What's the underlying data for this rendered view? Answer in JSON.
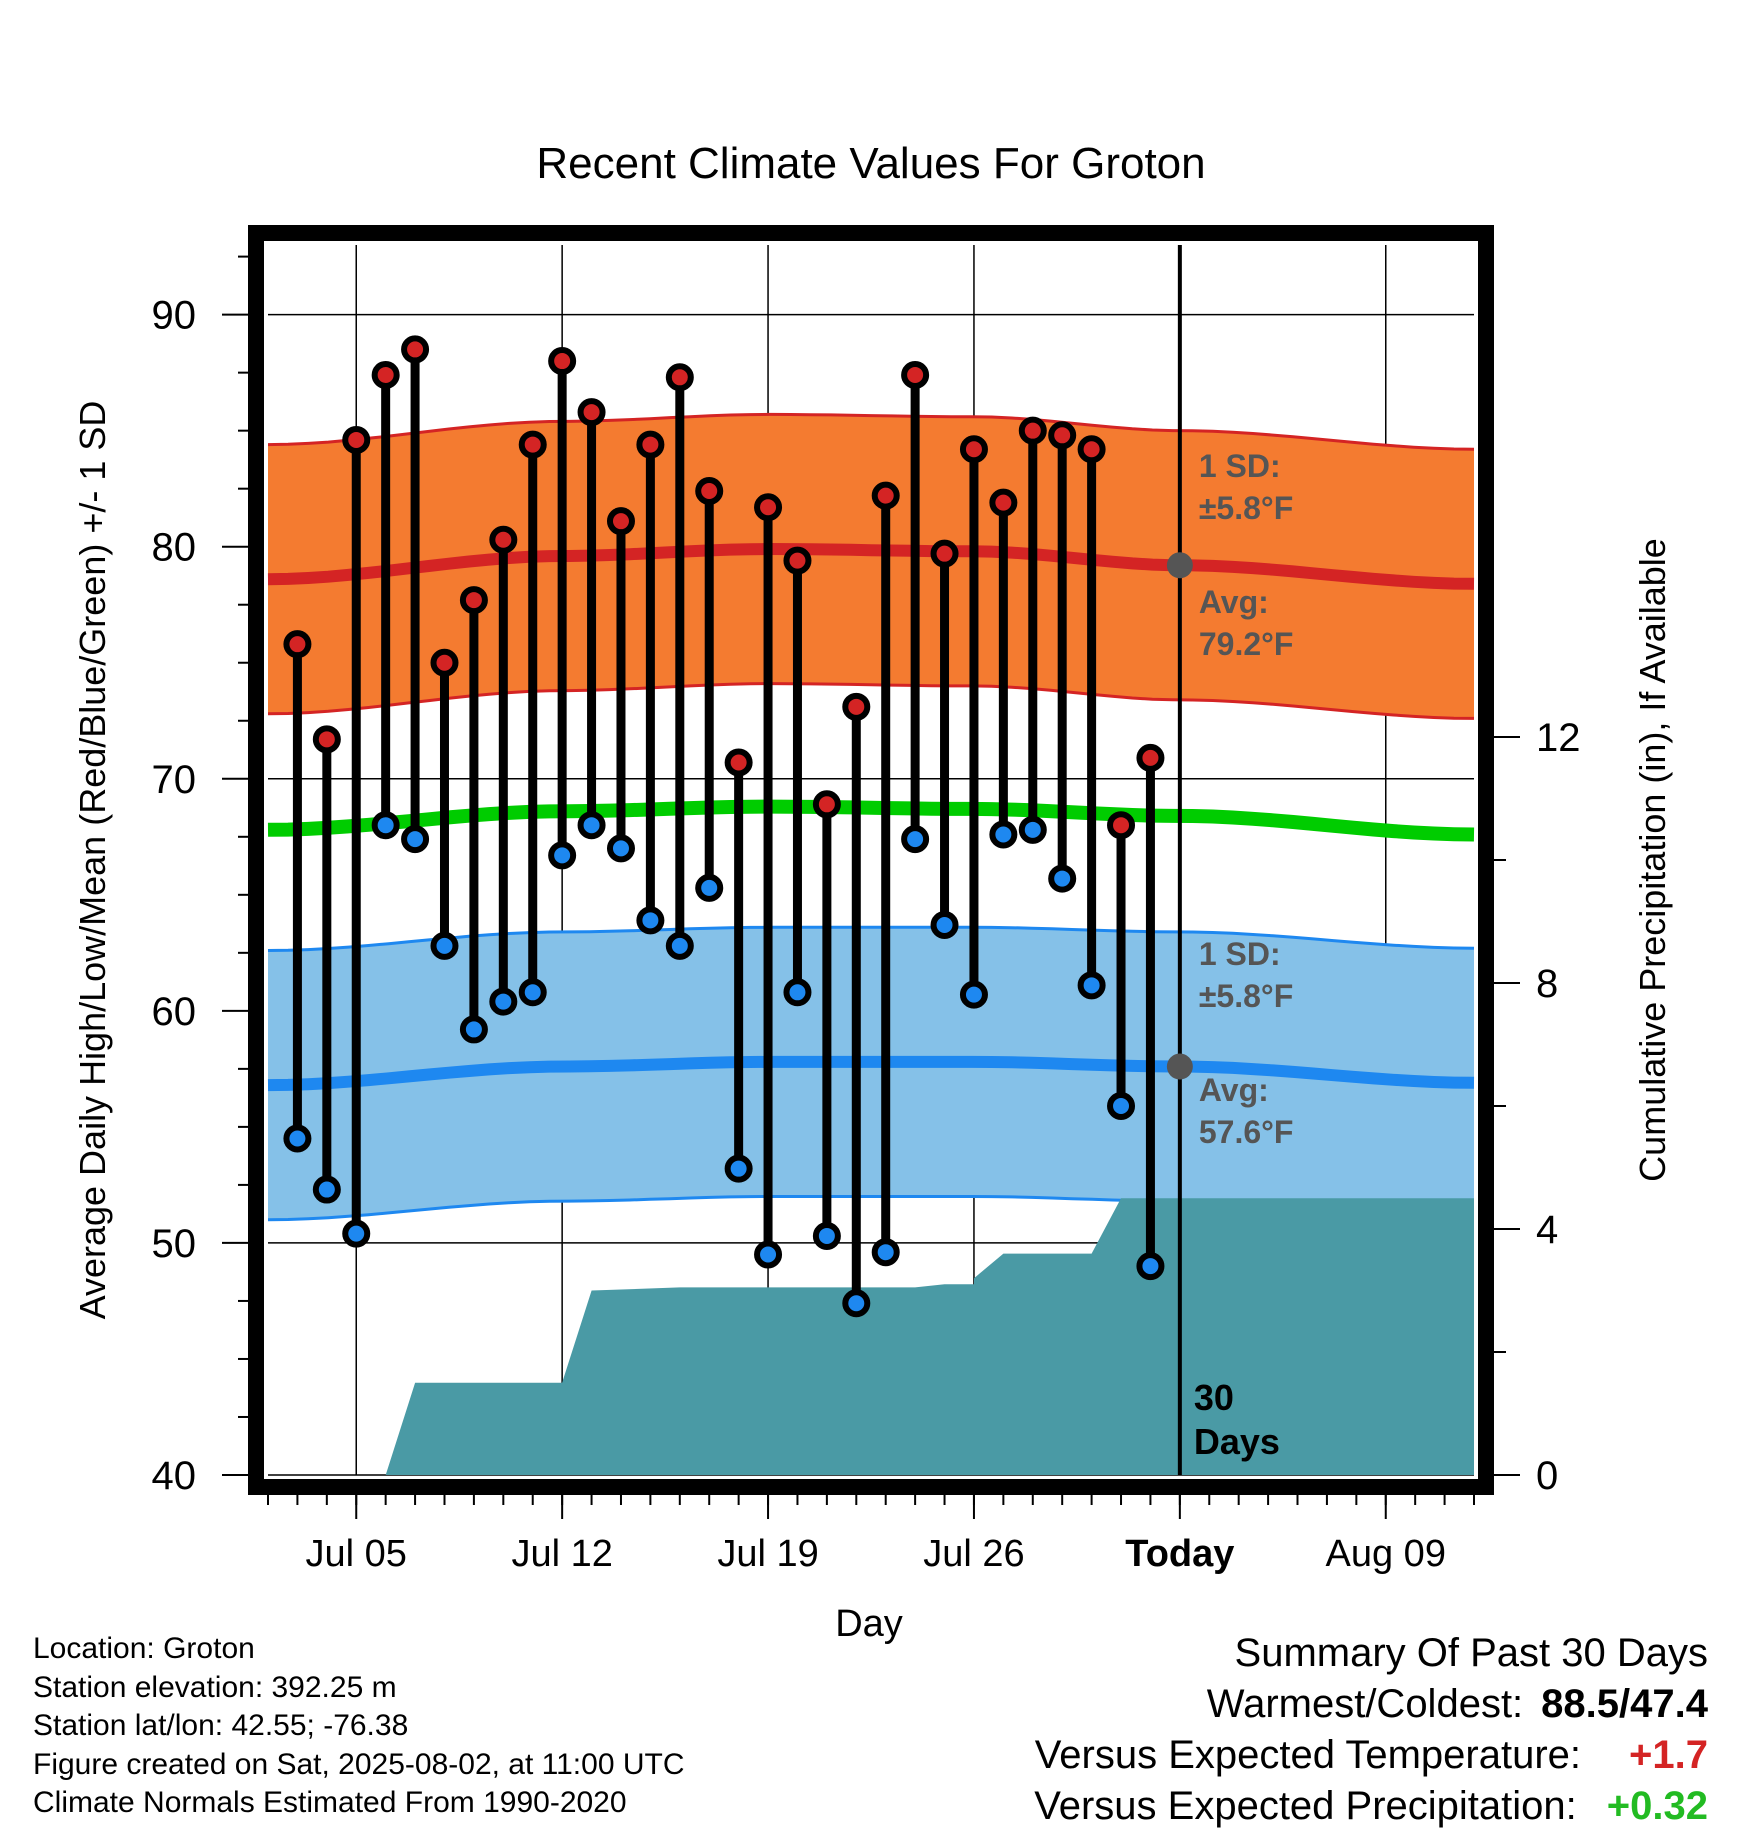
{
  "title": "Recent Climate Values For Groton",
  "ylabel": "Average Daily High/Low/Mean (Red/Blue/Green) +/- 1 SD",
  "y2label": "Cumulative Precipitation (in), If Available",
  "xlabel": "Day",
  "today_label": "Today",
  "window_label_line1": "30",
  "window_label_line2": "Days",
  "high_sd_label": [
    "1 SD:",
    "±5.8°F"
  ],
  "high_avg_label": [
    "Avg:",
    "79.2°F"
  ],
  "low_sd_label": [
    "1 SD:",
    "±5.8°F"
  ],
  "low_avg_label": [
    "Avg:",
    "57.6°F"
  ],
  "info": {
    "location": "Location: Groton",
    "elevation": "Station elevation: 392.25 m",
    "latlon": "Station lat/lon: 42.55; -76.38",
    "created": "Figure created on Sat, 2025-08-02, at 11:00 UTC",
    "normals": "Climate Normals Estimated From 1990-2020"
  },
  "summary": {
    "heading": "Summary Of Past 30 Days",
    "warmest_label": "Warmest/Coldest:",
    "warmest_value": "88.5/47.4",
    "temp_label": "Versus Expected Temperature:",
    "temp_value": "+1.7",
    "precip_label": "Versus Expected Precipitation:",
    "precip_value": "+0.32"
  },
  "colors": {
    "high_band": "#f47b30",
    "high_line": "#d42424",
    "low_band": "#85c1e8",
    "low_line": "#1e88f0",
    "mean_line": "#00cc00",
    "precip": "#4a9aa5",
    "high_dot": "#d42424",
    "low_dot": "#1e88f0",
    "label_gray": "#555555",
    "temp_diff": "#d42424",
    "precip_diff": "#22bb22"
  },
  "chart_data": {
    "type": "line",
    "title": "Recent Climate Values For Groton",
    "xlabel": "Day",
    "ylabel": "Average Daily High/Low/Mean (Red/Blue/Green) +/- 1 SD",
    "y2label": "Cumulative Precipitation (in), If Available",
    "ylim": [
      40,
      93
    ],
    "y2lim": [
      0,
      20
    ],
    "xlim": [
      "2025-07-02",
      "2025-08-12"
    ],
    "x_ticks": [
      "Jul 05",
      "Jul 12",
      "Jul 19",
      "Jul 26",
      "Today",
      "Aug 09"
    ],
    "x_tick_dates": [
      "2025-07-05",
      "2025-07-12",
      "2025-07-19",
      "2025-07-26",
      "2025-08-02",
      "2025-08-09"
    ],
    "y_ticks": [
      40,
      50,
      60,
      70,
      80,
      90
    ],
    "y2_ticks": [
      0,
      4,
      8,
      12
    ],
    "grid": true,
    "today": "2025-08-02",
    "days": [
      "2025-07-03",
      "2025-07-04",
      "2025-07-05",
      "2025-07-06",
      "2025-07-07",
      "2025-07-08",
      "2025-07-09",
      "2025-07-10",
      "2025-07-11",
      "2025-07-12",
      "2025-07-13",
      "2025-07-14",
      "2025-07-15",
      "2025-07-16",
      "2025-07-17",
      "2025-07-18",
      "2025-07-19",
      "2025-07-20",
      "2025-07-21",
      "2025-07-22",
      "2025-07-23",
      "2025-07-24",
      "2025-07-25",
      "2025-07-26",
      "2025-07-27",
      "2025-07-28",
      "2025-07-29",
      "2025-07-30",
      "2025-07-31",
      "2025-08-01"
    ],
    "highs": [
      75.8,
      71.7,
      84.6,
      87.4,
      88.5,
      75.0,
      77.7,
      80.3,
      84.4,
      88.0,
      85.8,
      81.1,
      84.4,
      87.3,
      82.4,
      70.7,
      81.7,
      79.4,
      68.9,
      73.1,
      82.2,
      87.4,
      79.7,
      84.2,
      81.9,
      85.0,
      84.8,
      84.2,
      68.0,
      70.9
    ],
    "lows": [
      54.5,
      52.3,
      50.4,
      68.0,
      67.4,
      62.8,
      59.2,
      60.4,
      60.8,
      66.7,
      68.0,
      67.0,
      63.9,
      62.8,
      65.3,
      53.2,
      49.5,
      60.8,
      50.3,
      47.4,
      49.6,
      67.4,
      63.7,
      60.7,
      67.6,
      67.8,
      65.7,
      61.1,
      55.9,
      49.0
    ],
    "normal_dates": [
      "2025-07-02",
      "2025-07-12",
      "2025-07-19",
      "2025-07-26",
      "2025-08-02",
      "2025-08-12"
    ],
    "normal_high": [
      78.6,
      79.6,
      79.9,
      79.8,
      79.2,
      78.4
    ],
    "normal_low": [
      56.8,
      57.6,
      57.8,
      57.8,
      57.6,
      56.9
    ],
    "normal_mean": [
      67.8,
      68.6,
      68.8,
      68.7,
      68.4,
      67.6
    ],
    "sd": 5.8,
    "precip_cumulative": [
      {
        "date": "2025-07-02",
        "value": 0.0
      },
      {
        "date": "2025-07-06",
        "value": 0.0
      },
      {
        "date": "2025-07-07",
        "value": 1.5
      },
      {
        "date": "2025-07-12",
        "value": 1.5
      },
      {
        "date": "2025-07-13",
        "value": 3.0
      },
      {
        "date": "2025-07-16",
        "value": 3.05
      },
      {
        "date": "2025-07-26",
        "value": 3.1
      },
      {
        "date": "2025-07-24",
        "value": 3.05
      },
      {
        "date": "2025-07-25",
        "value": 3.1
      },
      {
        "date": "2025-07-26",
        "value": 3.2
      },
      {
        "date": "2025-07-27",
        "value": 3.6
      },
      {
        "date": "2025-07-30",
        "value": 3.6
      },
      {
        "date": "2025-07-31",
        "value": 4.5
      },
      {
        "date": "2025-08-12",
        "value": 4.5
      }
    ]
  }
}
